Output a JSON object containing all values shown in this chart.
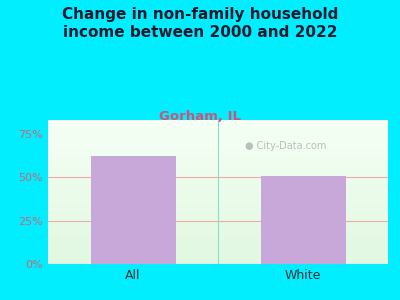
{
  "categories": [
    "All",
    "White"
  ],
  "values": [
    62,
    51
  ],
  "bar_color": "#c8a8d8",
  "title": "Change in non-family household\nincome between 2000 and 2022",
  "subtitle": "Gorham, IL",
  "subtitle_color": "#cc5577",
  "title_color": "#1a1a2e",
  "title_fontsize": 11,
  "subtitle_fontsize": 9.5,
  "tick_label_color": "#cc6677",
  "xlabel_color": "#333333",
  "ylim": [
    0,
    83
  ],
  "yticks": [
    0,
    25,
    50,
    75
  ],
  "ytick_labels": [
    "0%",
    "25%",
    "50%",
    "75%"
  ],
  "bg_outer": "#00eeff",
  "grid_color": "#f0aaaa",
  "watermark": "City-Data.com",
  "watermark_color": "#aaaaaa"
}
